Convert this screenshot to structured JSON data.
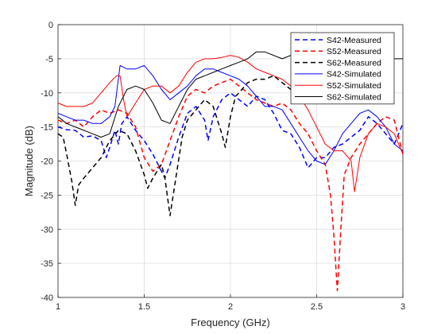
{
  "chart_data": {
    "type": "line",
    "title": "",
    "xlabel": "Frequency (GHz)",
    "ylabel": "Magnitude (dB)",
    "xlim": [
      1,
      3
    ],
    "ylim": [
      -40,
      0
    ],
    "xticks": [
      1,
      1.5,
      2,
      2.5,
      3
    ],
    "xtick_labels": [
      "1",
      "1.5",
      "2",
      "2.5",
      "3"
    ],
    "yticks": [
      0,
      -5,
      -10,
      -15,
      -20,
      -25,
      -30,
      -35,
      -40
    ],
    "ytick_labels": [
      "0",
      "-5",
      "-10",
      "-15",
      "-20",
      "-25",
      "-30",
      "-35",
      "-40"
    ],
    "grid": true,
    "legend_position": "top-right",
    "series": [
      {
        "name": "S42-Measured",
        "color": "#0000ff",
        "dash": "dashed",
        "points": [
          [
            1.0,
            -15.0
          ],
          [
            1.05,
            -15.4
          ],
          [
            1.1,
            -15.5
          ],
          [
            1.15,
            -16.5
          ],
          [
            1.2,
            -16.3
          ],
          [
            1.25,
            -17.0
          ],
          [
            1.28,
            -19.5
          ],
          [
            1.3,
            -18.0
          ],
          [
            1.33,
            -15.5
          ],
          [
            1.35,
            -17.5
          ],
          [
            1.37,
            -14.5
          ],
          [
            1.4,
            -13.5
          ],
          [
            1.45,
            -15.5
          ],
          [
            1.5,
            -17.0
          ],
          [
            1.55,
            -19.0
          ],
          [
            1.6,
            -21.5
          ],
          [
            1.62,
            -22.5
          ],
          [
            1.65,
            -20.5
          ],
          [
            1.7,
            -16.5
          ],
          [
            1.75,
            -13.0
          ],
          [
            1.8,
            -12.0
          ],
          [
            1.85,
            -14.0
          ],
          [
            1.87,
            -17.0
          ],
          [
            1.9,
            -13.5
          ],
          [
            1.95,
            -11.0
          ],
          [
            2.0,
            -10.0
          ],
          [
            2.05,
            -11.0
          ],
          [
            2.1,
            -12.0
          ],
          [
            2.15,
            -10.5
          ],
          [
            2.2,
            -11.0
          ],
          [
            2.25,
            -13.0
          ],
          [
            2.3,
            -15.5
          ],
          [
            2.35,
            -16.0
          ],
          [
            2.4,
            -18.0
          ],
          [
            2.45,
            -21.0
          ],
          [
            2.5,
            -19.5
          ],
          [
            2.55,
            -19.5
          ],
          [
            2.6,
            -18.0
          ],
          [
            2.65,
            -17.5
          ],
          [
            2.7,
            -16.5
          ],
          [
            2.75,
            -15.5
          ],
          [
            2.8,
            -13.5
          ],
          [
            2.85,
            -14.5
          ],
          [
            2.9,
            -16.0
          ],
          [
            2.95,
            -17.5
          ],
          [
            3.0,
            -14.5
          ]
        ]
      },
      {
        "name": "S52-Measured",
        "color": "#ff0000",
        "dash": "dashed",
        "points": [
          [
            1.0,
            -14.0
          ],
          [
            1.05,
            -14.5
          ],
          [
            1.1,
            -14.0
          ],
          [
            1.15,
            -15.0
          ],
          [
            1.2,
            -13.5
          ],
          [
            1.25,
            -12.5
          ],
          [
            1.3,
            -13.0
          ],
          [
            1.35,
            -12.5
          ],
          [
            1.4,
            -13.0
          ],
          [
            1.45,
            -15.0
          ],
          [
            1.5,
            -19.5
          ],
          [
            1.55,
            -21.5
          ],
          [
            1.6,
            -20.5
          ],
          [
            1.65,
            -17.0
          ],
          [
            1.7,
            -13.5
          ],
          [
            1.75,
            -10.5
          ],
          [
            1.8,
            -9.5
          ],
          [
            1.85,
            -10.0
          ],
          [
            1.9,
            -9.0
          ],
          [
            1.95,
            -8.5
          ],
          [
            2.0,
            -8.0
          ],
          [
            2.05,
            -9.0
          ],
          [
            2.1,
            -10.0
          ],
          [
            2.15,
            -11.0
          ],
          [
            2.2,
            -11.5
          ],
          [
            2.25,
            -12.0
          ],
          [
            2.3,
            -11.5
          ],
          [
            2.35,
            -12.5
          ],
          [
            2.4,
            -14.5
          ],
          [
            2.45,
            -16.0
          ],
          [
            2.5,
            -18.5
          ],
          [
            2.55,
            -20.5
          ],
          [
            2.58,
            -25.0
          ],
          [
            2.6,
            -31.0
          ],
          [
            2.62,
            -39.0
          ],
          [
            2.64,
            -30.0
          ],
          [
            2.66,
            -22.0
          ],
          [
            2.7,
            -19.5
          ],
          [
            2.75,
            -17.5
          ],
          [
            2.8,
            -16.0
          ],
          [
            2.85,
            -14.5
          ],
          [
            2.9,
            -13.5
          ],
          [
            2.95,
            -14.0
          ],
          [
            3.0,
            -19.0
          ]
        ]
      },
      {
        "name": "S62-Measured",
        "color": "#000000",
        "dash": "dashed",
        "points": [
          [
            1.0,
            -16.0
          ],
          [
            1.03,
            -16.5
          ],
          [
            1.05,
            -19.0
          ],
          [
            1.08,
            -23.0
          ],
          [
            1.1,
            -26.5
          ],
          [
            1.12,
            -23.5
          ],
          [
            1.15,
            -22.5
          ],
          [
            1.2,
            -21.0
          ],
          [
            1.25,
            -19.5
          ],
          [
            1.3,
            -17.0
          ],
          [
            1.35,
            -15.5
          ],
          [
            1.4,
            -16.0
          ],
          [
            1.45,
            -18.5
          ],
          [
            1.5,
            -22.0
          ],
          [
            1.52,
            -24.0
          ],
          [
            1.55,
            -22.5
          ],
          [
            1.6,
            -20.5
          ],
          [
            1.62,
            -22.5
          ],
          [
            1.65,
            -28.0
          ],
          [
            1.68,
            -23.0
          ],
          [
            1.72,
            -16.5
          ],
          [
            1.75,
            -14.0
          ],
          [
            1.8,
            -12.5
          ],
          [
            1.85,
            -11.0
          ],
          [
            1.9,
            -12.0
          ],
          [
            1.95,
            -16.0
          ],
          [
            1.97,
            -18.0
          ],
          [
            2.0,
            -13.5
          ],
          [
            2.03,
            -10.5
          ],
          [
            2.05,
            -10.0
          ],
          [
            2.1,
            -8.5
          ],
          [
            2.15,
            -8.0
          ],
          [
            2.2,
            -8.0
          ],
          [
            2.25,
            -7.5
          ],
          [
            2.3,
            -8.5
          ],
          [
            2.35,
            -9.5
          ],
          [
            2.4,
            -10.0
          ],
          [
            2.45,
            -10.5
          ],
          [
            2.5,
            -10.0
          ]
        ]
      },
      {
        "name": "S42-Simulated",
        "color": "#0000ff",
        "dash": "solid",
        "points": [
          [
            1.0,
            -13.0
          ],
          [
            1.05,
            -13.5
          ],
          [
            1.1,
            -14.0
          ],
          [
            1.15,
            -14.0
          ],
          [
            1.2,
            -14.5
          ],
          [
            1.25,
            -14.5
          ],
          [
            1.3,
            -13.5
          ],
          [
            1.33,
            -12.0
          ],
          [
            1.36,
            -6.0
          ],
          [
            1.4,
            -6.5
          ],
          [
            1.45,
            -6.5
          ],
          [
            1.5,
            -6.0
          ],
          [
            1.55,
            -7.5
          ],
          [
            1.6,
            -9.5
          ],
          [
            1.65,
            -11.0
          ],
          [
            1.7,
            -10.0
          ],
          [
            1.75,
            -9.0
          ],
          [
            1.8,
            -7.5
          ],
          [
            1.85,
            -6.5
          ],
          [
            1.9,
            -6.5
          ],
          [
            1.95,
            -7.0
          ],
          [
            2.0,
            -7.5
          ],
          [
            2.05,
            -8.0
          ],
          [
            2.1,
            -9.0
          ],
          [
            2.15,
            -10.5
          ],
          [
            2.2,
            -12.0
          ],
          [
            2.25,
            -12.0
          ],
          [
            2.3,
            -12.5
          ],
          [
            2.35,
            -14.5
          ],
          [
            2.4,
            -16.5
          ],
          [
            2.45,
            -18.5
          ],
          [
            2.5,
            -20.0
          ],
          [
            2.55,
            -20.5
          ],
          [
            2.6,
            -18.5
          ],
          [
            2.65,
            -16.0
          ],
          [
            2.7,
            -14.5
          ],
          [
            2.75,
            -13.0
          ],
          [
            2.8,
            -12.5
          ],
          [
            2.85,
            -13.5
          ],
          [
            2.9,
            -15.0
          ],
          [
            2.95,
            -17.5
          ],
          [
            3.0,
            -18.5
          ]
        ]
      },
      {
        "name": "S52-Simulated",
        "color": "#ff0000",
        "dash": "solid",
        "points": [
          [
            1.0,
            -11.5
          ],
          [
            1.05,
            -12.0
          ],
          [
            1.1,
            -12.0
          ],
          [
            1.15,
            -12.0
          ],
          [
            1.2,
            -11.5
          ],
          [
            1.25,
            -10.0
          ],
          [
            1.3,
            -8.5
          ],
          [
            1.34,
            -7.5
          ],
          [
            1.36,
            -7.5
          ],
          [
            1.38,
            -11.0
          ],
          [
            1.4,
            -13.5
          ],
          [
            1.45,
            -11.5
          ],
          [
            1.5,
            -9.5
          ],
          [
            1.55,
            -9.0
          ],
          [
            1.6,
            -9.0
          ],
          [
            1.65,
            -10.0
          ],
          [
            1.7,
            -9.0
          ],
          [
            1.75,
            -7.0
          ],
          [
            1.8,
            -5.5
          ],
          [
            1.85,
            -5.0
          ],
          [
            1.9,
            -5.0
          ],
          [
            1.95,
            -4.8
          ],
          [
            2.0,
            -4.5
          ],
          [
            2.05,
            -4.8
          ],
          [
            2.1,
            -5.5
          ],
          [
            2.15,
            -6.5
          ],
          [
            2.2,
            -7.0
          ],
          [
            2.25,
            -7.5
          ],
          [
            2.3,
            -8.0
          ],
          [
            2.35,
            -9.0
          ],
          [
            2.4,
            -10.5
          ],
          [
            2.45,
            -12.5
          ],
          [
            2.5,
            -15.0
          ],
          [
            2.55,
            -17.5
          ],
          [
            2.6,
            -18.5
          ],
          [
            2.65,
            -18.5
          ],
          [
            2.7,
            -20.0
          ],
          [
            2.72,
            -24.5
          ],
          [
            2.75,
            -19.5
          ],
          [
            2.8,
            -16.0
          ],
          [
            2.85,
            -14.5
          ],
          [
            2.9,
            -15.0
          ],
          [
            2.95,
            -16.0
          ],
          [
            3.0,
            -19.0
          ]
        ]
      },
      {
        "name": "S62-Simulated",
        "color": "#000000",
        "dash": "solid",
        "points": [
          [
            1.0,
            -13.5
          ],
          [
            1.05,
            -14.5
          ],
          [
            1.1,
            -15.0
          ],
          [
            1.15,
            -15.5
          ],
          [
            1.2,
            -16.0
          ],
          [
            1.25,
            -16.5
          ],
          [
            1.3,
            -16.0
          ],
          [
            1.35,
            -12.0
          ],
          [
            1.4,
            -9.5
          ],
          [
            1.45,
            -9.0
          ],
          [
            1.5,
            -9.5
          ],
          [
            1.55,
            -11.5
          ],
          [
            1.6,
            -14.0
          ],
          [
            1.65,
            -14.5
          ],
          [
            1.7,
            -12.0
          ],
          [
            1.75,
            -9.5
          ],
          [
            1.8,
            -8.0
          ],
          [
            1.85,
            -7.5
          ],
          [
            1.9,
            -7.0
          ],
          [
            1.95,
            -6.5
          ],
          [
            2.0,
            -6.0
          ],
          [
            2.05,
            -5.5
          ],
          [
            2.1,
            -5.0
          ],
          [
            2.15,
            -4.0
          ],
          [
            2.2,
            -4.0
          ],
          [
            2.25,
            -4.5
          ],
          [
            2.3,
            -5.0
          ],
          [
            2.35,
            -4.5
          ],
          [
            2.4,
            -4.0
          ],
          [
            2.45,
            -4.2
          ],
          [
            2.5,
            -4.5
          ],
          [
            2.55,
            -4.5
          ],
          [
            2.6,
            -4.8
          ],
          [
            2.65,
            -5.0
          ],
          [
            2.7,
            -5.0
          ],
          [
            2.75,
            -5.5
          ],
          [
            2.8,
            -5.5
          ],
          [
            2.85,
            -5.8
          ],
          [
            2.9,
            -5.5
          ],
          [
            2.95,
            -5.0
          ],
          [
            3.0,
            -5.0
          ]
        ]
      }
    ]
  }
}
